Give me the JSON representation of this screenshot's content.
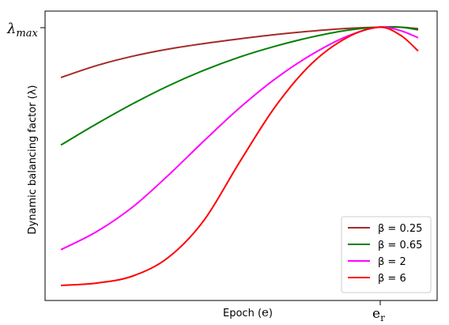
{
  "chart_data": {
    "type": "line",
    "xlabel_prefix": "Epoch (",
    "xlabel_symbol": "e",
    "xlabel_suffix": ")",
    "ylabel": "Dynamic balancing factor (λ)",
    "y_tick_main": "λ",
    "y_tick_sub": "max",
    "x_tick_main": "e",
    "x_tick_sub": "r",
    "legend_position": "lower-right",
    "grid": false,
    "x_range": [
      0,
      1.0
    ],
    "y_range": [
      0,
      1.0
    ],
    "series": [
      {
        "name": "β = 0.25",
        "color": "#a52a2a",
        "points": [
          [
            0.0,
            0.8
          ],
          [
            0.1,
            0.845
          ],
          [
            0.2,
            0.88
          ],
          [
            0.3,
            0.907
          ],
          [
            0.4,
            0.928
          ],
          [
            0.5,
            0.946
          ],
          [
            0.6,
            0.962
          ],
          [
            0.7,
            0.975
          ],
          [
            0.8,
            0.985
          ],
          [
            0.89,
            0.99
          ],
          [
            0.95,
            0.99
          ],
          [
            1.0,
            0.984
          ]
        ]
      },
      {
        "name": "β = 0.65",
        "color": "#008000",
        "points": [
          [
            0.0,
            0.545
          ],
          [
            0.1,
            0.625
          ],
          [
            0.2,
            0.7
          ],
          [
            0.3,
            0.768
          ],
          [
            0.4,
            0.827
          ],
          [
            0.5,
            0.877
          ],
          [
            0.6,
            0.918
          ],
          [
            0.7,
            0.952
          ],
          [
            0.8,
            0.978
          ],
          [
            0.89,
            0.99
          ],
          [
            0.95,
            0.99
          ],
          [
            1.0,
            0.98
          ]
        ]
      },
      {
        "name": "β = 2",
        "color": "#ff00ff",
        "points": [
          [
            0.0,
            0.15
          ],
          [
            0.1,
            0.218
          ],
          [
            0.2,
            0.31
          ],
          [
            0.3,
            0.43
          ],
          [
            0.4,
            0.56
          ],
          [
            0.5,
            0.685
          ],
          [
            0.6,
            0.795
          ],
          [
            0.7,
            0.885
          ],
          [
            0.8,
            0.955
          ],
          [
            0.89,
            0.99
          ],
          [
            0.95,
            0.977
          ],
          [
            1.0,
            0.95
          ]
        ]
      },
      {
        "name": "β = 6",
        "color": "#ff0000",
        "points": [
          [
            0.0,
            0.015
          ],
          [
            0.1,
            0.024
          ],
          [
            0.2,
            0.05
          ],
          [
            0.3,
            0.12
          ],
          [
            0.4,
            0.26
          ],
          [
            0.5,
            0.48
          ],
          [
            0.6,
            0.69
          ],
          [
            0.7,
            0.85
          ],
          [
            0.8,
            0.95
          ],
          [
            0.89,
            0.99
          ],
          [
            0.95,
            0.96
          ],
          [
            1.0,
            0.9
          ]
        ]
      }
    ]
  }
}
